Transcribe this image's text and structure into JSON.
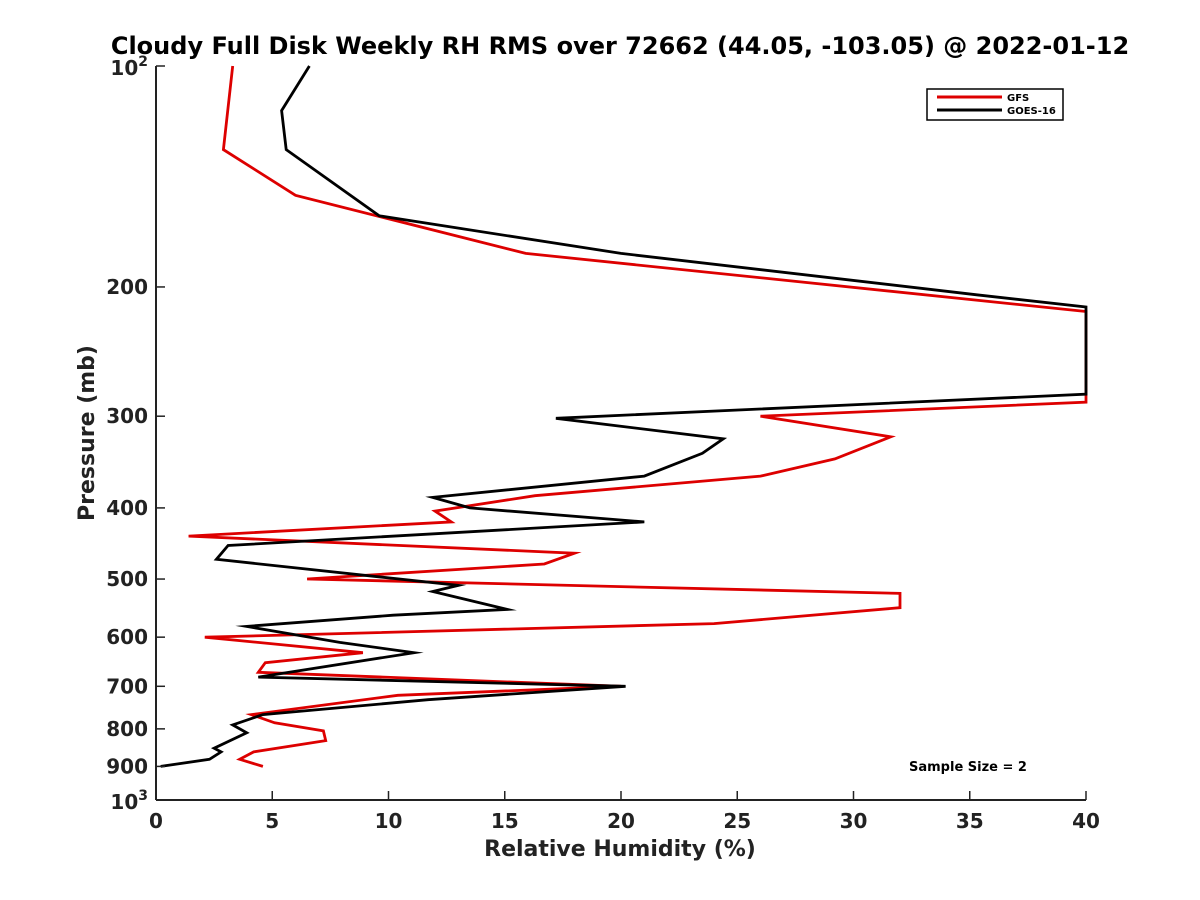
{
  "chart_data": {
    "type": "line",
    "title": "Cloudy Full Disk Weekly RH RMS over 72662 (44.05, -103.05) @ 2022-01-12",
    "xlabel": "Relative Humidity (%)",
    "ylabel": "Pressure (mb)",
    "xlim": [
      0,
      40
    ],
    "ylim": [
      100,
      1000
    ],
    "y_scale": "log",
    "y_reversed": true,
    "grid": false,
    "legend_position": "top-right",
    "x_ticks": [
      "0",
      "5",
      "10",
      "15",
      "20",
      "25",
      "30",
      "35",
      "40"
    ],
    "y_ticks": [
      {
        "value": 100,
        "base": "10",
        "exp": "2"
      },
      {
        "value": 200,
        "label": "200"
      },
      {
        "value": 300,
        "label": "300"
      },
      {
        "value": 400,
        "label": "400"
      },
      {
        "value": 500,
        "label": "500"
      },
      {
        "value": 600,
        "label": "600"
      },
      {
        "value": 700,
        "label": "700"
      },
      {
        "value": 800,
        "label": "800"
      },
      {
        "value": 900,
        "label": "900"
      },
      {
        "value": 1000,
        "base": "10",
        "exp": "3"
      }
    ],
    "annotation": "Sample Size = 2",
    "series": [
      {
        "name": "GFS",
        "color": "#dd0000",
        "points": [
          [
            3.3,
            100
          ],
          [
            2.9,
            130
          ],
          [
            6.0,
            150
          ],
          [
            15.9,
            180
          ],
          [
            40,
            216
          ],
          [
            40,
            287
          ],
          [
            26.0,
            300
          ],
          [
            31.6,
            320
          ],
          [
            29.2,
            343
          ],
          [
            26.0,
            362
          ],
          [
            16.3,
            385
          ],
          [
            12.0,
            404
          ],
          [
            12.7,
            418
          ],
          [
            1.4,
            437
          ],
          [
            18.0,
            461
          ],
          [
            16.7,
            477
          ],
          [
            6.5,
            500
          ],
          [
            32.0,
            523
          ],
          [
            32.0,
            547
          ],
          [
            24.0,
            575
          ],
          [
            2.1,
            600
          ],
          [
            8.9,
            630
          ],
          [
            4.7,
            650
          ],
          [
            4.4,
            670
          ],
          [
            20.0,
            700
          ],
          [
            10.4,
            720
          ],
          [
            4.1,
            765
          ],
          [
            5.1,
            785
          ],
          [
            7.2,
            805
          ],
          [
            7.3,
            830
          ],
          [
            4.2,
            860
          ],
          [
            3.6,
            880
          ],
          [
            4.6,
            900
          ]
        ]
      },
      {
        "name": "GOES-16",
        "color": "#000000",
        "points": [
          [
            6.6,
            100
          ],
          [
            5.4,
            115
          ],
          [
            5.6,
            130
          ],
          [
            9.6,
            160
          ],
          [
            20.0,
            180
          ],
          [
            35.3,
            205
          ],
          [
            40,
            213
          ],
          [
            40,
            280
          ],
          [
            17.2,
            302
          ],
          [
            24.4,
            322
          ],
          [
            23.5,
            337
          ],
          [
            21.0,
            362
          ],
          [
            11.9,
            387
          ],
          [
            13.5,
            400
          ],
          [
            21.0,
            418
          ],
          [
            3.1,
            450
          ],
          [
            2.6,
            470
          ],
          [
            13.0,
            510
          ],
          [
            11.9,
            520
          ],
          [
            15.1,
            550
          ],
          [
            10.2,
            560
          ],
          [
            3.9,
            580
          ],
          [
            7.9,
            610
          ],
          [
            11.1,
            630
          ],
          [
            4.4,
            680
          ],
          [
            20.2,
            700
          ],
          [
            11.7,
            730
          ],
          [
            4.6,
            765
          ],
          [
            3.3,
            790
          ],
          [
            3.9,
            810
          ],
          [
            2.5,
            850
          ],
          [
            2.8,
            860
          ],
          [
            2.3,
            880
          ],
          [
            0.2,
            900
          ]
        ]
      }
    ]
  }
}
